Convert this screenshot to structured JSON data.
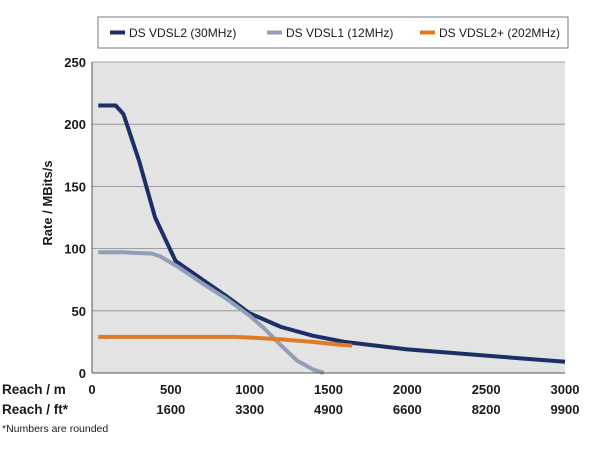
{
  "chart_data": {
    "type": "line",
    "ylabel": "Rate / MBits/s",
    "ylim": [
      0,
      250
    ],
    "yticks": [
      0,
      50,
      100,
      150,
      200,
      250
    ],
    "xlim": [
      0,
      3000
    ],
    "grid": "horizontal",
    "legend_position": "top",
    "x_rows": [
      {
        "label": "Reach / m",
        "ticks": [
          "0",
          "500",
          "1000",
          "1500",
          "2000",
          "2500",
          "3000"
        ]
      },
      {
        "label": "Reach / ft*",
        "ticks": [
          "",
          "1600",
          "3300",
          "4900",
          "6600",
          "8200",
          "9900"
        ]
      }
    ],
    "footnote": "*Numbers are rounded",
    "series": [
      {
        "name": "DS VDSL2 (30MHz)",
        "color": "#1c2e66",
        "points": [
          [
            40,
            215
          ],
          [
            150,
            215
          ],
          [
            200,
            208
          ],
          [
            300,
            170
          ],
          [
            400,
            125
          ],
          [
            530,
            90
          ],
          [
            700,
            75
          ],
          [
            850,
            62
          ],
          [
            1000,
            48
          ],
          [
            1200,
            37
          ],
          [
            1400,
            30
          ],
          [
            1600,
            25
          ],
          [
            1800,
            22
          ],
          [
            2000,
            19
          ],
          [
            2300,
            16
          ],
          [
            2500,
            14
          ],
          [
            2700,
            12
          ],
          [
            3000,
            9
          ]
        ]
      },
      {
        "name": "DS VDSL1 (12MHz)",
        "color": "#929db8",
        "points": [
          [
            40,
            97
          ],
          [
            200,
            97
          ],
          [
            380,
            96
          ],
          [
            430,
            94
          ],
          [
            550,
            85
          ],
          [
            700,
            72
          ],
          [
            850,
            60
          ],
          [
            1000,
            46
          ],
          [
            1100,
            35
          ],
          [
            1200,
            22
          ],
          [
            1300,
            10
          ],
          [
            1400,
            3
          ],
          [
            1470,
            0
          ]
        ]
      },
      {
        "name": "DS VDSL2+ (202MHz)",
        "color": "#e07b24",
        "points": [
          [
            40,
            29
          ],
          [
            300,
            29
          ],
          [
            600,
            29
          ],
          [
            900,
            29
          ],
          [
            1000,
            28.5
          ],
          [
            1200,
            27
          ],
          [
            1400,
            25
          ],
          [
            1550,
            23
          ],
          [
            1650,
            22
          ]
        ]
      }
    ]
  }
}
